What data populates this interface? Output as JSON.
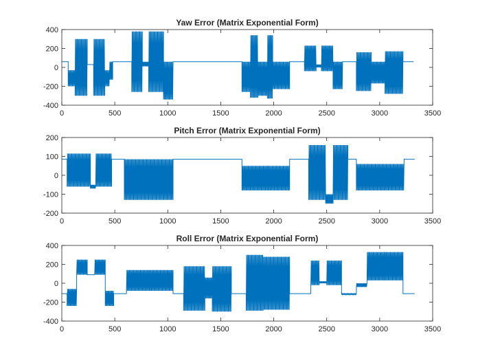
{
  "chart_data": [
    {
      "type": "line",
      "title": "Yaw Error (Matrix Exponential Form)",
      "xlabel": "",
      "ylabel": "",
      "xlim": [
        0,
        3500
      ],
      "ylim": [
        -400,
        400
      ],
      "xticks": [
        0,
        500,
        1000,
        1500,
        2000,
        2500,
        3000,
        3500
      ],
      "yticks": [
        -400,
        -200,
        0,
        200,
        400
      ],
      "grid": false,
      "color": "#0072BD",
      "baseline": 60,
      "envelope": [
        {
          "x": [
            0,
            45
          ],
          "lo": 60,
          "hi": 60
        },
        {
          "x": [
            45,
            60
          ],
          "lo": 60,
          "hi": 60
        },
        {
          "x": [
            60,
            125
          ],
          "lo": -200,
          "hi": -30,
          "note": "lower band"
        },
        {
          "x": [
            125,
            240
          ],
          "lo": -300,
          "hi": 300
        },
        {
          "x": [
            240,
            300
          ],
          "lo": 30,
          "hi": 30
        },
        {
          "x": [
            300,
            405
          ],
          "lo": -300,
          "hi": 300
        },
        {
          "x": [
            405,
            450
          ],
          "lo": -200,
          "hi": -30
        },
        {
          "x": [
            450,
            480
          ],
          "lo": -130,
          "hi": 60
        },
        {
          "x": [
            480,
            660
          ],
          "lo": 60,
          "hi": 60
        },
        {
          "x": [
            660,
            760
          ],
          "lo": -260,
          "hi": 380
        },
        {
          "x": [
            760,
            820
          ],
          "lo": 10,
          "hi": 60
        },
        {
          "x": [
            820,
            960
          ],
          "lo": -260,
          "hi": 380
        },
        {
          "x": [
            960,
            1050
          ],
          "lo": -340,
          "hi": 60
        },
        {
          "x": [
            1050,
            1700
          ],
          "lo": 60,
          "hi": 60
        },
        {
          "x": [
            1700,
            1780
          ],
          "lo": -260,
          "hi": 60
        },
        {
          "x": [
            1780,
            1850
          ],
          "lo": -320,
          "hi": 340
        },
        {
          "x": [
            1850,
            1940
          ],
          "lo": -300,
          "hi": 60
        },
        {
          "x": [
            1940,
            1990
          ],
          "lo": -330,
          "hi": 340
        },
        {
          "x": [
            1990,
            2150
          ],
          "lo": -230,
          "hi": 60
        },
        {
          "x": [
            2150,
            2290
          ],
          "lo": 60,
          "hi": 60
        },
        {
          "x": [
            2290,
            2400
          ],
          "lo": -40,
          "hi": 230
        },
        {
          "x": [
            2400,
            2450
          ],
          "lo": 0,
          "hi": 30
        },
        {
          "x": [
            2450,
            2560
          ],
          "lo": -40,
          "hi": 230
        },
        {
          "x": [
            2560,
            2650
          ],
          "lo": -230,
          "hi": 60
        },
        {
          "x": [
            2650,
            2780
          ],
          "lo": 60,
          "hi": 60
        },
        {
          "x": [
            2780,
            2920
          ],
          "lo": -250,
          "hi": 160
        },
        {
          "x": [
            2920,
            3050
          ],
          "lo": -170,
          "hi": 60
        },
        {
          "x": [
            3050,
            3220
          ],
          "lo": -280,
          "hi": 170
        },
        {
          "x": [
            3220,
            3320
          ],
          "lo": 60,
          "hi": 60
        }
      ]
    },
    {
      "type": "line",
      "title": "Pitch Error (Matrix Exponential Form)",
      "xlabel": "",
      "ylabel": "",
      "xlim": [
        0,
        3500
      ],
      "ylim": [
        -200,
        200
      ],
      "xticks": [
        0,
        500,
        1000,
        1500,
        2000,
        2500,
        3000,
        3500
      ],
      "yticks": [
        -200,
        -100,
        0,
        100,
        200
      ],
      "grid": false,
      "color": "#0072BD",
      "baseline": 85,
      "envelope": [
        {
          "x": [
            0,
            50
          ],
          "lo": 85,
          "hi": 85
        },
        {
          "x": [
            50,
            270
          ],
          "lo": -60,
          "hi": 115
        },
        {
          "x": [
            270,
            320
          ],
          "lo": -70,
          "hi": -50
        },
        {
          "x": [
            320,
            470
          ],
          "lo": -60,
          "hi": 115
        },
        {
          "x": [
            470,
            590
          ],
          "lo": 85,
          "hi": 85
        },
        {
          "x": [
            590,
            820
          ],
          "lo": -130,
          "hi": 85
        },
        {
          "x": [
            820,
            1050
          ],
          "lo": -130,
          "hi": 85
        },
        {
          "x": [
            1050,
            1700
          ],
          "lo": 85,
          "hi": 85
        },
        {
          "x": [
            1700,
            1950
          ],
          "lo": -80,
          "hi": 50
        },
        {
          "x": [
            1950,
            2150
          ],
          "lo": -80,
          "hi": 50
        },
        {
          "x": [
            2150,
            2330
          ],
          "lo": 85,
          "hi": 85
        },
        {
          "x": [
            2330,
            2490
          ],
          "lo": -130,
          "hi": 160
        },
        {
          "x": [
            2490,
            2560
          ],
          "lo": -150,
          "hi": -100
        },
        {
          "x": [
            2560,
            2700
          ],
          "lo": -130,
          "hi": 160
        },
        {
          "x": [
            2700,
            2780
          ],
          "lo": 85,
          "hi": 85
        },
        {
          "x": [
            2780,
            3050
          ],
          "lo": -80,
          "hi": 60
        },
        {
          "x": [
            3050,
            3230
          ],
          "lo": -80,
          "hi": 60
        },
        {
          "x": [
            3230,
            3330
          ],
          "lo": 85,
          "hi": 85
        }
      ]
    },
    {
      "type": "line",
      "title": "Roll Error (Matrix Exponential Form)",
      "xlabel": "",
      "ylabel": "",
      "xlim": [
        0,
        3500
      ],
      "ylim": [
        -400,
        400
      ],
      "xticks": [
        0,
        500,
        1000,
        1500,
        2000,
        2500,
        3000,
        3500
      ],
      "yticks": [
        -400,
        -200,
        0,
        200,
        400
      ],
      "grid": false,
      "color": "#0072BD",
      "baseline": -110,
      "envelope": [
        {
          "x": [
            0,
            50
          ],
          "lo": -110,
          "hi": -110
        },
        {
          "x": [
            50,
            140
          ],
          "lo": -240,
          "hi": -60
        },
        {
          "x": [
            140,
            240
          ],
          "lo": 90,
          "hi": 250
        },
        {
          "x": [
            240,
            310
          ],
          "lo": 90,
          "hi": 90
        },
        {
          "x": [
            310,
            410
          ],
          "lo": 90,
          "hi": 250
        },
        {
          "x": [
            410,
            490
          ],
          "lo": -240,
          "hi": -80
        },
        {
          "x": [
            490,
            610
          ],
          "lo": -110,
          "hi": -110
        },
        {
          "x": [
            610,
            830
          ],
          "lo": -80,
          "hi": 140
        },
        {
          "x": [
            830,
            1050
          ],
          "lo": -80,
          "hi": 140
        },
        {
          "x": [
            1050,
            1150
          ],
          "lo": -110,
          "hi": -110
        },
        {
          "x": [
            1150,
            1350
          ],
          "lo": -290,
          "hi": 180
        },
        {
          "x": [
            1350,
            1420
          ],
          "lo": -160,
          "hi": 60
        },
        {
          "x": [
            1420,
            1600
          ],
          "lo": -300,
          "hi": 180
        },
        {
          "x": [
            1600,
            1740
          ],
          "lo": -110,
          "hi": -110
        },
        {
          "x": [
            1740,
            1900
          ],
          "lo": -290,
          "hi": 300
        },
        {
          "x": [
            1900,
            2150
          ],
          "lo": -280,
          "hi": 280
        },
        {
          "x": [
            2150,
            2350
          ],
          "lo": -110,
          "hi": -110
        },
        {
          "x": [
            2350,
            2430
          ],
          "lo": -20,
          "hi": 240
        },
        {
          "x": [
            2430,
            2500
          ],
          "lo": 0,
          "hi": 20
        },
        {
          "x": [
            2500,
            2640
          ],
          "lo": -20,
          "hi": 240
        },
        {
          "x": [
            2640,
            2780
          ],
          "lo": -120,
          "hi": -110
        },
        {
          "x": [
            2780,
            2880
          ],
          "lo": -40,
          "hi": 0
        },
        {
          "x": [
            2880,
            3050
          ],
          "lo": 30,
          "hi": 330
        },
        {
          "x": [
            3050,
            3220
          ],
          "lo": 30,
          "hi": 330
        },
        {
          "x": [
            3220,
            3330
          ],
          "lo": -110,
          "hi": -110
        }
      ]
    }
  ]
}
